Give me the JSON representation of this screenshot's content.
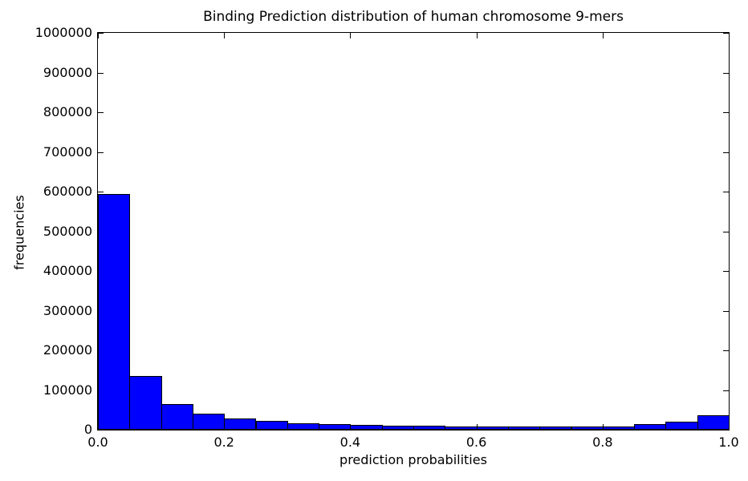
{
  "chart_data": {
    "type": "bar",
    "subtype": "histogram",
    "title": "Binding Prediction distribution of human chromosome 9-mers",
    "xlabel": "prediction probabilities",
    "ylabel": "frequencies",
    "xlim": [
      0.0,
      1.0
    ],
    "ylim": [
      0,
      1000000
    ],
    "grid": false,
    "legend": null,
    "bar_color": "#0000ff",
    "bar_edge_color": "#000000",
    "bin_edges": [
      0.0,
      0.05,
      0.1,
      0.15,
      0.2,
      0.25,
      0.3,
      0.35,
      0.4,
      0.45,
      0.5,
      0.55,
      0.6,
      0.65,
      0.7,
      0.75,
      0.8,
      0.85,
      0.9,
      0.95,
      1.0
    ],
    "values": [
      593000,
      135000,
      64000,
      41000,
      28500,
      22000,
      16500,
      14500,
      11500,
      10500,
      9500,
      8500,
      8000,
      7500,
      7500,
      8000,
      9000,
      14500,
      20500,
      35500
    ],
    "x_ticks": [
      0.0,
      0.2,
      0.4,
      0.6,
      0.8,
      1.0
    ],
    "x_tick_labels": [
      "0.0",
      "0.2",
      "0.4",
      "0.6",
      "0.8",
      "1.0"
    ],
    "y_ticks": [
      0,
      100000,
      200000,
      300000,
      400000,
      500000,
      600000,
      700000,
      800000,
      900000,
      1000000
    ],
    "y_tick_labels": [
      "0",
      "100000",
      "200000",
      "300000",
      "400000",
      "500000",
      "600000",
      "700000",
      "800000",
      "900000",
      "1000000"
    ]
  }
}
